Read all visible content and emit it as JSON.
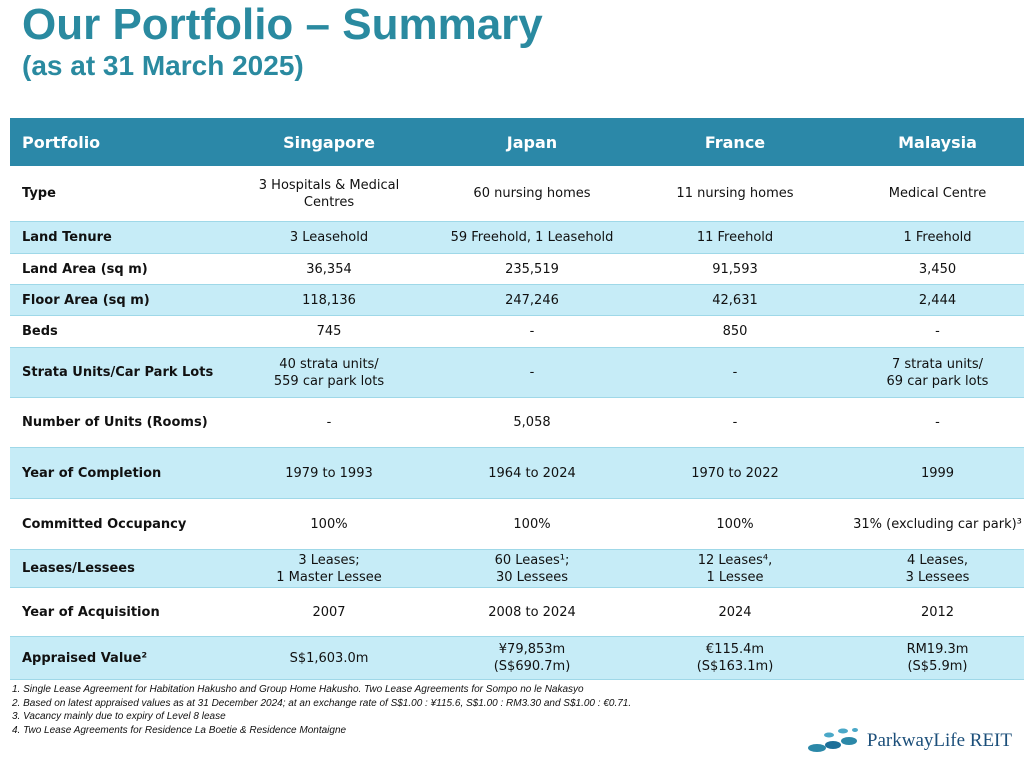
{
  "title": "Our Portfolio – Summary",
  "subtitle": "(as at 31 March 2025)",
  "table": {
    "header": [
      "Portfolio",
      "Singapore",
      "Japan",
      "France",
      "Malaysia"
    ],
    "rows": [
      [
        "Type",
        "3 Hospitals & Medical Centres",
        "60 nursing homes",
        "11 nursing homes",
        "Medical Centre"
      ],
      [
        "Land Tenure",
        "3 Leasehold",
        "59 Freehold, 1 Leasehold",
        "11 Freehold",
        "1 Freehold"
      ],
      [
        "Land Area (sq m)",
        "36,354",
        "235,519",
        "91,593",
        "3,450"
      ],
      [
        "Floor Area (sq m)",
        "118,136",
        "247,246",
        "42,631",
        "2,444"
      ],
      [
        "Beds",
        "745",
        "-",
        "850",
        "-"
      ],
      [
        "Strata Units/Car Park Lots",
        "40 strata units/\n559 car park lots",
        "-",
        "-",
        "7 strata units/\n69 car park lots"
      ],
      [
        "Number of Units (Rooms)",
        "-",
        "5,058",
        "-",
        "-"
      ],
      [
        "Year of Completion",
        "1979 to 1993",
        "1964 to 2024",
        "1970 to 2022",
        "1999"
      ],
      [
        "Committed Occupancy",
        "100%",
        "100%",
        "100%",
        "31% (excluding car park)³"
      ],
      [
        "Leases/Lessees",
        "3 Leases;\n1 Master Lessee",
        "60 Leases¹;\n30 Lessees",
        "12 Leases⁴,\n1 Lessee",
        "4 Leases,\n3 Lessees"
      ],
      [
        "Year of Acquisition",
        "2007",
        "2008 to 2024",
        "2024",
        "2012"
      ],
      [
        "Appraised Value²",
        "S$1,603.0m",
        "¥79,853m\n(S$690.7m)",
        "€115.4m\n(S$163.1m)",
        "RM19.3m\n(S$5.9m)"
      ]
    ]
  },
  "footnotes": [
    "1. Single Lease Agreement for Habitation Hakusho and Group Home Hakusho. Two Lease Agreements for Sompo no le Nakasyo",
    "2. Based on latest appraised values as at 31 December 2024;  at an exchange rate of S$1.00 : ¥115.6, S$1.00 : RM3.30 and S$1.00 : €0.71.",
    "3. Vacancy mainly due to expiry of Level 8 lease",
    "4. Two Lease Agreements for Residence La Boetie & Residence Montaigne"
  ],
  "logo": "ParkwayLife REIT"
}
